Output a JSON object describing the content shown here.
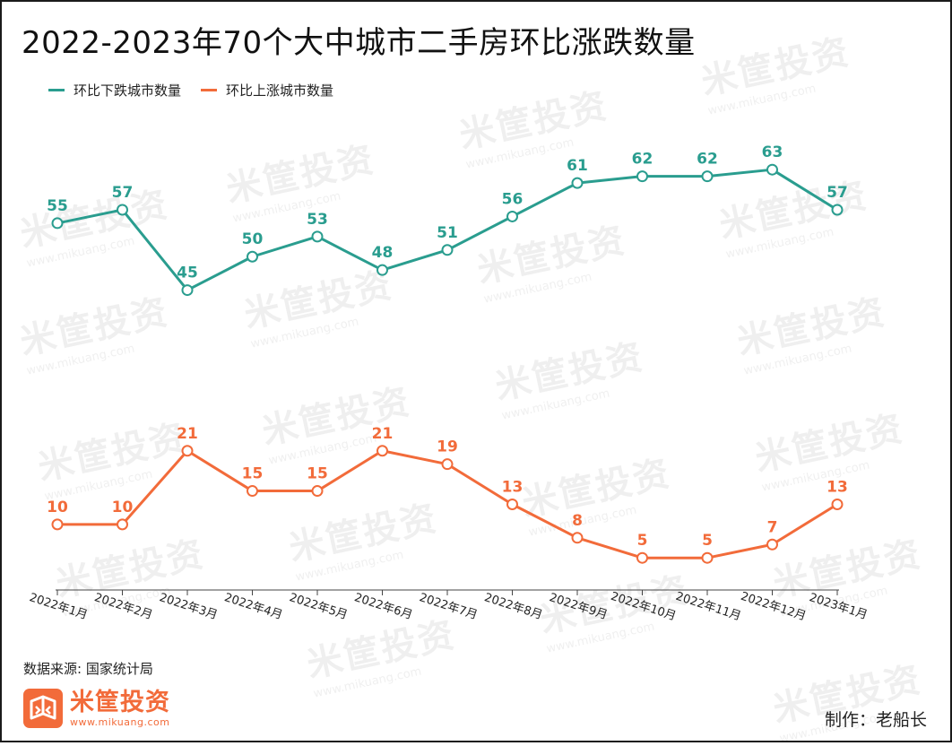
{
  "title": "2022-2023年70个大中城市二手房环比涨跌数量",
  "legend": [
    {
      "label": "环比下跌城市数量",
      "color": "#2a9d8f"
    },
    {
      "label": "环比上涨城市数量",
      "color": "#f26b3a"
    }
  ],
  "chart_data": {
    "type": "line",
    "categories": [
      "2022年1月",
      "2022年2月",
      "2022年3月",
      "2022年4月",
      "2022年5月",
      "2022年6月",
      "2022年7月",
      "2022年8月",
      "2022年9月",
      "2022年10月",
      "2022年11月",
      "2022年12月",
      "2023年1月"
    ],
    "series": [
      {
        "name": "环比下跌城市数量",
        "color": "#2a9d8f",
        "values": [
          55,
          57,
          45,
          50,
          53,
          48,
          51,
          56,
          61,
          62,
          62,
          63,
          57
        ]
      },
      {
        "name": "环比上涨城市数量",
        "color": "#f26b3a",
        "values": [
          10,
          10,
          21,
          15,
          15,
          21,
          19,
          13,
          8,
          5,
          5,
          7,
          13
        ]
      }
    ],
    "ylim": [
      -1,
      72
    ],
    "grid": false,
    "legend_position": "top-left"
  },
  "source": "数据来源: 国家统计局",
  "logo": {
    "name": "米筐投资",
    "url": "www.mikuang.com"
  },
  "credit": "制作：老船长"
}
